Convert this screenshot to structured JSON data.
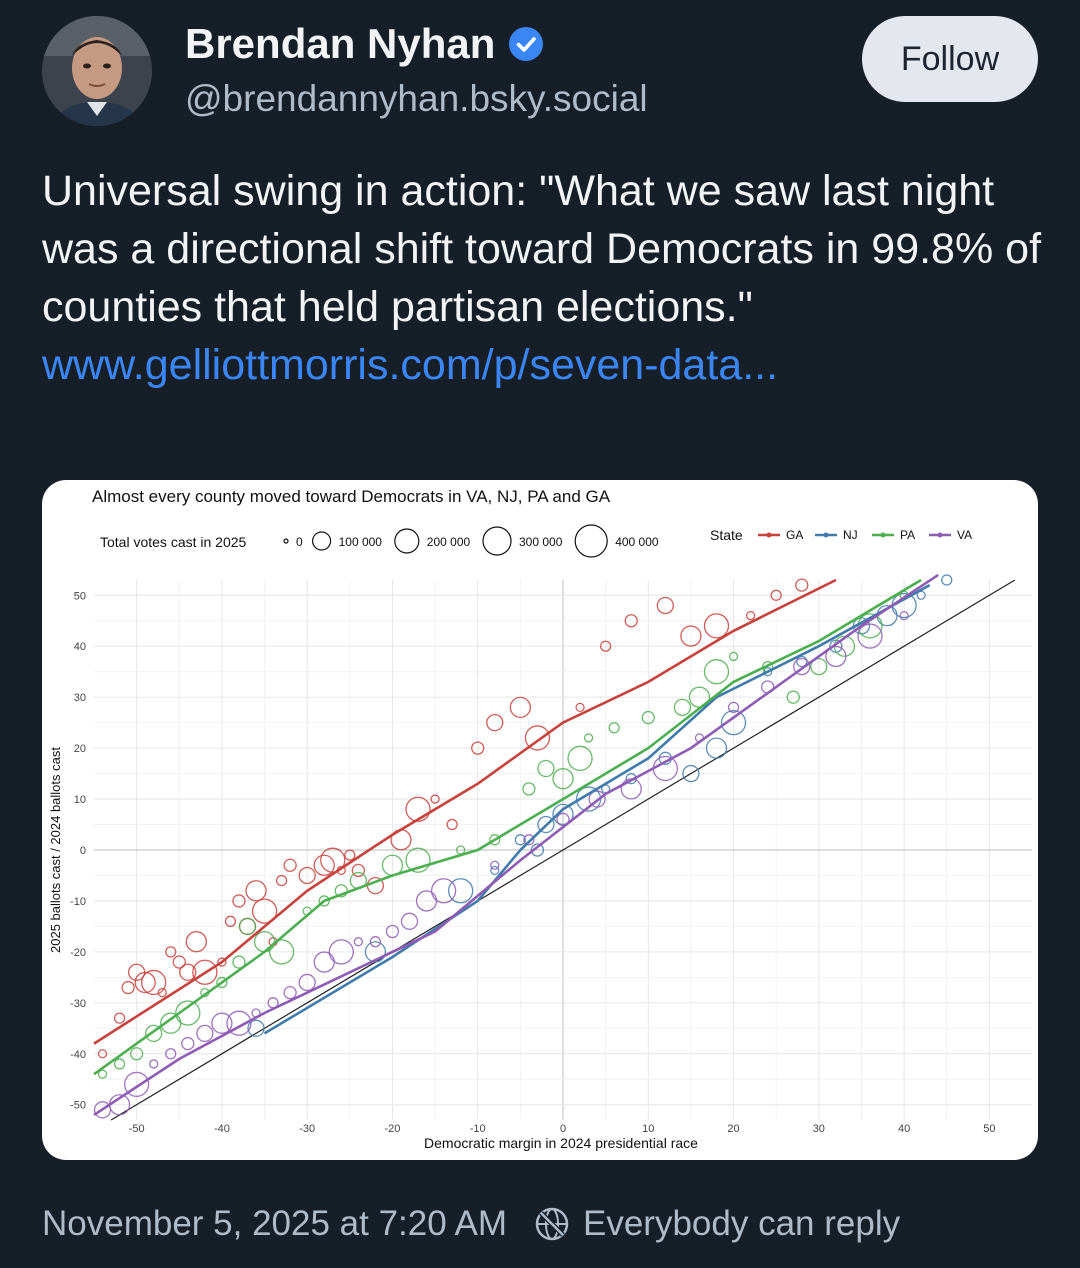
{
  "author": {
    "display_name": "Brendan Nyhan",
    "handle": "@brendannyhan.bsky.social"
  },
  "follow_label": "Follow",
  "post": {
    "text": "Universal swing in action: \"What we saw last night was a directional shift toward Democrats in 99.8% of counties that held partisan elections.\" ",
    "link_text": "www.gelliottmorris.com/p/seven-data..."
  },
  "footer": {
    "timestamp": "November 5, 2025 at 7:20 AM",
    "reply_setting": "Everybody can reply"
  },
  "icons": {
    "verified": "verified-check-icon",
    "reply_setting": "globe-slash-icon"
  },
  "colors": {
    "link": "#3a86f5",
    "background": "#161e27",
    "verified": "#3a86f5"
  },
  "chart_data": {
    "type": "scatter",
    "title": "Almost every county moved toward Democrats in VA, NJ, PA and GA",
    "xlabel": "Democratic margin in 2024 presidential race",
    "ylabel": "2025 ballots cast / 2024 ballots cast",
    "xlim": [
      -55,
      55
    ],
    "ylim": [
      -53,
      53
    ],
    "xticks": [
      -50,
      -40,
      -30,
      -20,
      -10,
      0,
      10,
      20,
      30,
      40,
      50
    ],
    "yticks": [
      -50,
      -40,
      -30,
      -20,
      -10,
      0,
      10,
      20,
      30,
      40,
      50
    ],
    "grid": true,
    "reference_line": "y = x",
    "size_legend": {
      "title": "Total votes cast in 2025",
      "labels": [
        "0",
        "100 000",
        "200 000",
        "300 000",
        "400 000"
      ],
      "values": [
        0,
        100000,
        200000,
        300000,
        400000
      ]
    },
    "color_legend": {
      "title": "State",
      "placement": "top-right"
    },
    "series": [
      {
        "name": "GA",
        "color": "#c8413a",
        "trend": [
          [
            -55,
            -38
          ],
          [
            -40,
            -22
          ],
          [
            -30,
            -8
          ],
          [
            -20,
            3
          ],
          [
            -10,
            13
          ],
          [
            0,
            25
          ],
          [
            10,
            33
          ],
          [
            20,
            43
          ],
          [
            32,
            53
          ]
        ],
        "points": [
          [
            -54,
            -40
          ],
          [
            -52,
            -33
          ],
          [
            -51,
            -27
          ],
          [
            -50,
            -24
          ],
          [
            -49,
            -26
          ],
          [
            -48,
            -26
          ],
          [
            -47,
            -28
          ],
          [
            -46,
            -20
          ],
          [
            -45,
            -22
          ],
          [
            -44,
            -24
          ],
          [
            -43,
            -18
          ],
          [
            -42,
            -24
          ],
          [
            -40,
            -22
          ],
          [
            -39,
            -14
          ],
          [
            -38,
            -10
          ],
          [
            -37,
            -15
          ],
          [
            -36,
            -8
          ],
          [
            -35,
            -12
          ],
          [
            -34,
            -18
          ],
          [
            -33,
            -6
          ],
          [
            -32,
            -3
          ],
          [
            -30,
            -5
          ],
          [
            -28,
            -3
          ],
          [
            -27,
            -2
          ],
          [
            -26,
            -4
          ],
          [
            -25,
            -1
          ],
          [
            -24,
            -4
          ],
          [
            -22,
            -7
          ],
          [
            -19,
            2
          ],
          [
            -17,
            8
          ],
          [
            -15,
            10
          ],
          [
            -13,
            5
          ],
          [
            -10,
            20
          ],
          [
            -8,
            25
          ],
          [
            -5,
            28
          ],
          [
            -3,
            22
          ],
          [
            2,
            28
          ],
          [
            5,
            40
          ],
          [
            8,
            45
          ],
          [
            12,
            48
          ],
          [
            15,
            42
          ],
          [
            18,
            44
          ],
          [
            22,
            46
          ],
          [
            25,
            50
          ],
          [
            28,
            52
          ]
        ]
      },
      {
        "name": "NJ",
        "color": "#3f7bab",
        "trend": [
          [
            -35,
            -36
          ],
          [
            -20,
            -21
          ],
          [
            -10,
            -10
          ],
          [
            -5,
            0
          ],
          [
            0,
            8
          ],
          [
            10,
            18
          ],
          [
            18,
            30
          ],
          [
            30,
            40
          ],
          [
            43,
            52
          ]
        ],
        "points": [
          [
            -36,
            -35
          ],
          [
            -22,
            -20
          ],
          [
            -12,
            -8
          ],
          [
            -8,
            -4
          ],
          [
            -5,
            2
          ],
          [
            -3,
            0
          ],
          [
            -2,
            5
          ],
          [
            0,
            7
          ],
          [
            3,
            10
          ],
          [
            5,
            12
          ],
          [
            8,
            14
          ],
          [
            12,
            18
          ],
          [
            15,
            15
          ],
          [
            18,
            20
          ],
          [
            20,
            25
          ],
          [
            24,
            35
          ],
          [
            28,
            37
          ],
          [
            32,
            40
          ],
          [
            35,
            44
          ],
          [
            38,
            46
          ],
          [
            40,
            48
          ],
          [
            42,
            50
          ],
          [
            45,
            53
          ]
        ]
      },
      {
        "name": "PA",
        "color": "#4caf4f",
        "trend": [
          [
            -55,
            -44
          ],
          [
            -45,
            -32
          ],
          [
            -35,
            -20
          ],
          [
            -28,
            -10
          ],
          [
            -20,
            -5
          ],
          [
            -10,
            0
          ],
          [
            0,
            10
          ],
          [
            10,
            20
          ],
          [
            20,
            33
          ],
          [
            30,
            41
          ],
          [
            42,
            53
          ]
        ],
        "points": [
          [
            -54,
            -44
          ],
          [
            -52,
            -42
          ],
          [
            -50,
            -40
          ],
          [
            -48,
            -36
          ],
          [
            -46,
            -34
          ],
          [
            -44,
            -32
          ],
          [
            -42,
            -28
          ],
          [
            -40,
            -26
          ],
          [
            -38,
            -22
          ],
          [
            -37,
            -15
          ],
          [
            -35,
            -18
          ],
          [
            -33,
            -20
          ],
          [
            -30,
            -12
          ],
          [
            -28,
            -10
          ],
          [
            -26,
            -8
          ],
          [
            -24,
            -6
          ],
          [
            -20,
            -3
          ],
          [
            -17,
            -2
          ],
          [
            -12,
            0
          ],
          [
            -8,
            2
          ],
          [
            -4,
            12
          ],
          [
            -2,
            16
          ],
          [
            0,
            14
          ],
          [
            2,
            18
          ],
          [
            3,
            22
          ],
          [
            6,
            24
          ],
          [
            10,
            26
          ],
          [
            14,
            28
          ],
          [
            16,
            30
          ],
          [
            18,
            35
          ],
          [
            20,
            38
          ],
          [
            24,
            36
          ],
          [
            27,
            30
          ],
          [
            30,
            36
          ],
          [
            33,
            40
          ],
          [
            36,
            44
          ],
          [
            40,
            50
          ]
        ]
      },
      {
        "name": "VA",
        "color": "#8e5bb5",
        "trend": [
          [
            -55,
            -52
          ],
          [
            -45,
            -41
          ],
          [
            -35,
            -32
          ],
          [
            -25,
            -24
          ],
          [
            -15,
            -16
          ],
          [
            -5,
            -2
          ],
          [
            5,
            11
          ],
          [
            15,
            20
          ],
          [
            25,
            32
          ],
          [
            35,
            44
          ],
          [
            44,
            54
          ]
        ],
        "points": [
          [
            -54,
            -51
          ],
          [
            -52,
            -50
          ],
          [
            -50,
            -46
          ],
          [
            -48,
            -42
          ],
          [
            -46,
            -40
          ],
          [
            -44,
            -38
          ],
          [
            -42,
            -36
          ],
          [
            -40,
            -34
          ],
          [
            -38,
            -34
          ],
          [
            -36,
            -32
          ],
          [
            -34,
            -30
          ],
          [
            -32,
            -28
          ],
          [
            -30,
            -26
          ],
          [
            -28,
            -22
          ],
          [
            -26,
            -20
          ],
          [
            -24,
            -18
          ],
          [
            -22,
            -18
          ],
          [
            -20,
            -16
          ],
          [
            -18,
            -14
          ],
          [
            -16,
            -10
          ],
          [
            -14,
            -8
          ],
          [
            -8,
            -3
          ],
          [
            -4,
            2
          ],
          [
            0,
            6
          ],
          [
            4,
            10
          ],
          [
            8,
            12
          ],
          [
            12,
            16
          ],
          [
            16,
            22
          ],
          [
            20,
            28
          ],
          [
            24,
            32
          ],
          [
            28,
            36
          ],
          [
            32,
            38
          ],
          [
            36,
            42
          ],
          [
            40,
            46
          ]
        ]
      }
    ]
  }
}
